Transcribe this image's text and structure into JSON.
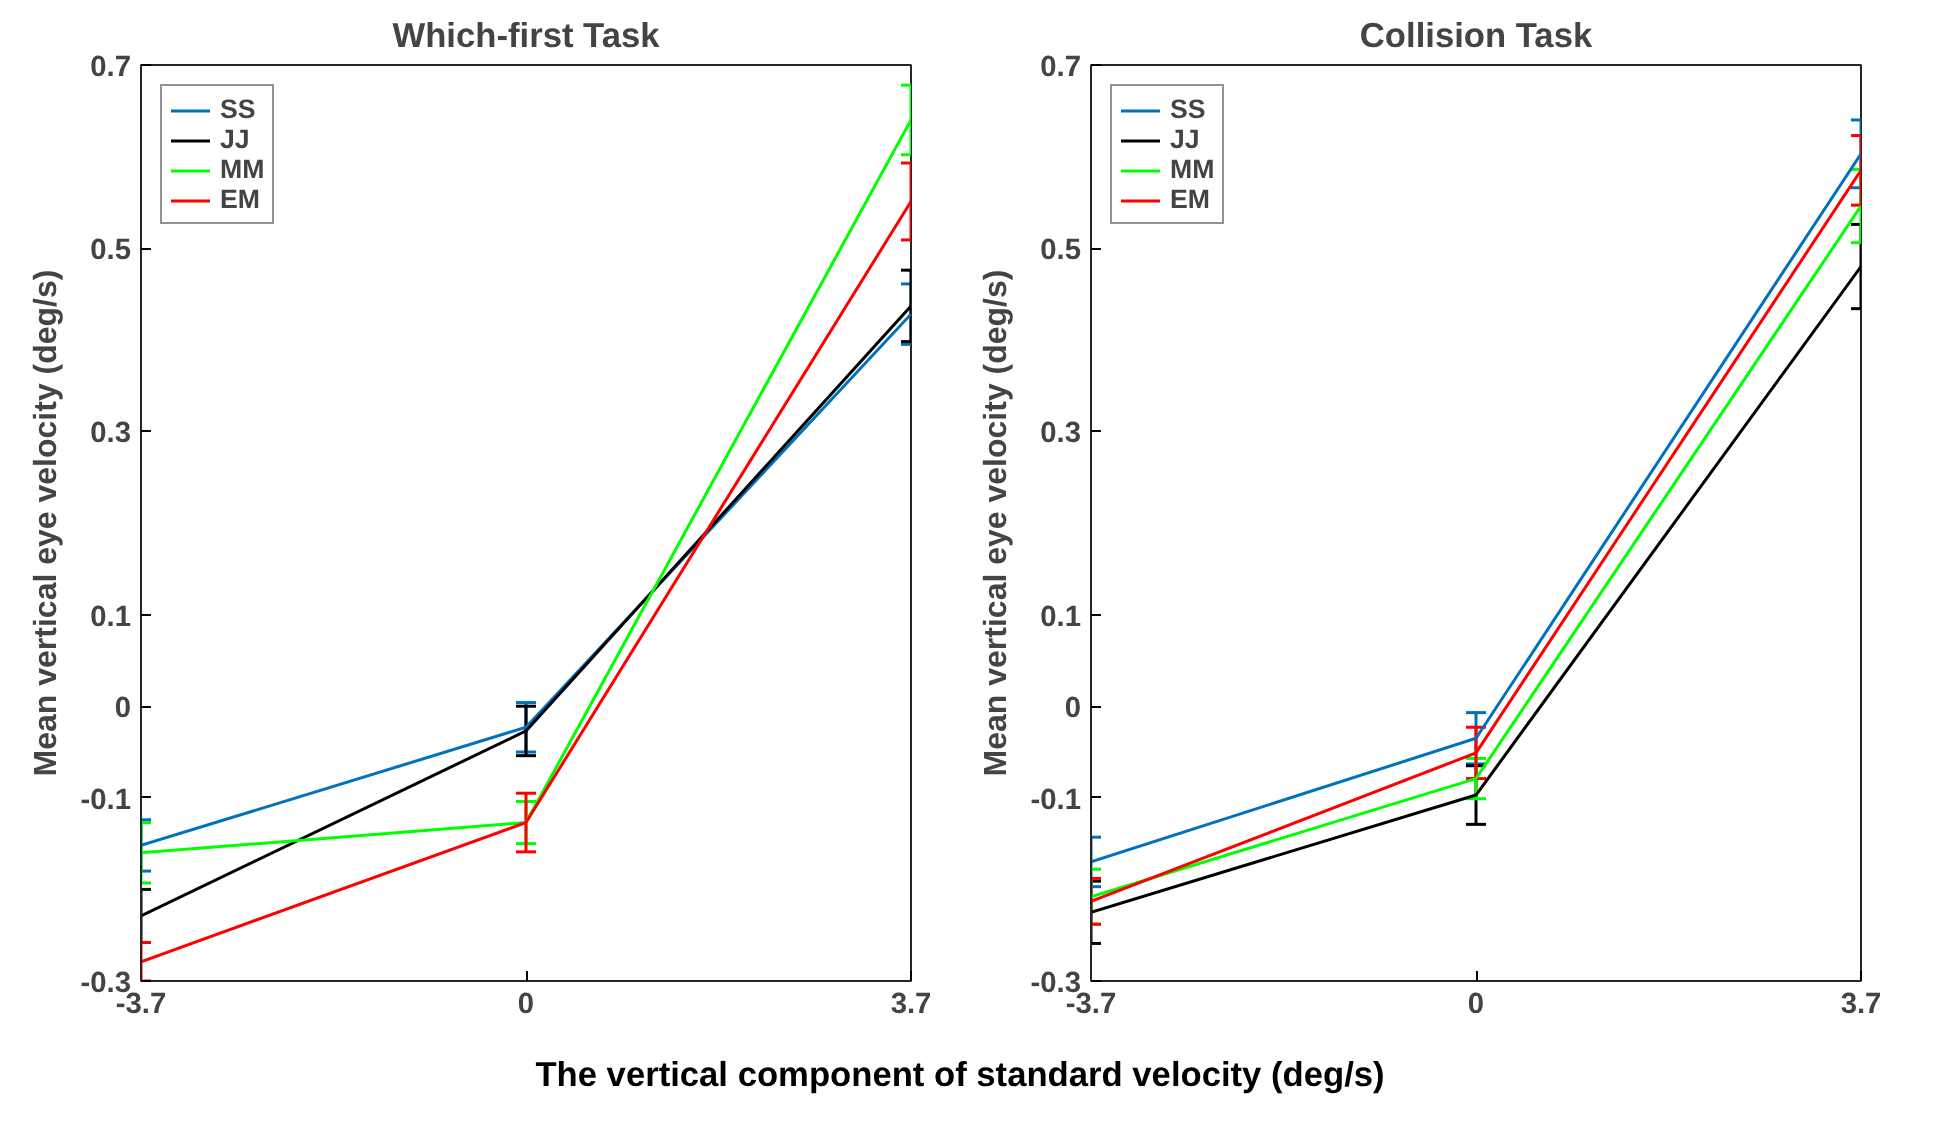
{
  "chart_data": [
    {
      "type": "line",
      "title": "Which-first Task",
      "xlabel": "The vertical component of standard velocity (deg/s)",
      "ylabel": "Mean vertical eye velocity (deg/s)",
      "x": [
        -3.7,
        0,
        3.7
      ],
      "xlim": [
        -3.7,
        3.7
      ],
      "xticks": [
        -3.7,
        0,
        3.7
      ],
      "ylim": [
        -0.3,
        0.7
      ],
      "yticks": [
        -0.3,
        -0.1,
        0,
        0.1,
        0.3,
        0.5,
        0.7
      ],
      "grid": false,
      "legend": "top left",
      "series": [
        {
          "name": "SS",
          "color": "#0072bd",
          "values": [
            -0.152,
            -0.023,
            0.428
          ],
          "errors": [
            0.028,
            0.027,
            0.033
          ]
        },
        {
          "name": "JJ",
          "color": "#000000",
          "values": [
            -0.229,
            -0.027,
            0.437
          ],
          "errors": [
            0.029,
            0.027,
            0.039
          ]
        },
        {
          "name": "MM",
          "color": "#00ff00",
          "values": [
            -0.16,
            -0.127,
            0.64
          ],
          "errors": [
            0.033,
            0.023,
            0.038
          ]
        },
        {
          "name": "EM",
          "color": "#ff0000",
          "values": [
            -0.279,
            -0.127,
            0.551
          ],
          "errors": [
            0.021,
            0.032,
            0.042
          ]
        }
      ]
    },
    {
      "type": "line",
      "title": "Collision Task",
      "ylabel": "Mean vertical eye velocity (deg/s)",
      "x": [
        -3.7,
        0,
        3.7
      ],
      "xlim": [
        -3.7,
        3.7
      ],
      "xticks": [
        -3.7,
        0,
        3.7
      ],
      "ylim": [
        -0.3,
        0.7
      ],
      "yticks": [
        -0.3,
        -0.1,
        0,
        0.1,
        0.3,
        0.5,
        0.7
      ],
      "grid": false,
      "legend": "top left",
      "series": [
        {
          "name": "SS",
          "color": "#0072bd",
          "values": [
            -0.17,
            -0.035,
            0.603
          ],
          "errors": [
            0.027,
            0.028,
            0.037
          ]
        },
        {
          "name": "JJ",
          "color": "#000000",
          "values": [
            -0.225,
            -0.097,
            0.48
          ],
          "errors": [
            0.034,
            0.032,
            0.046
          ]
        },
        {
          "name": "MM",
          "color": "#00ff00",
          "values": [
            -0.208,
            -0.079,
            0.546
          ],
          "errors": [
            0.03,
            0.022,
            0.04
          ]
        },
        {
          "name": "EM",
          "color": "#ff0000",
          "values": [
            -0.213,
            -0.051,
            0.585
          ],
          "errors": [
            0.025,
            0.028,
            0.038
          ]
        }
      ]
    }
  ]
}
